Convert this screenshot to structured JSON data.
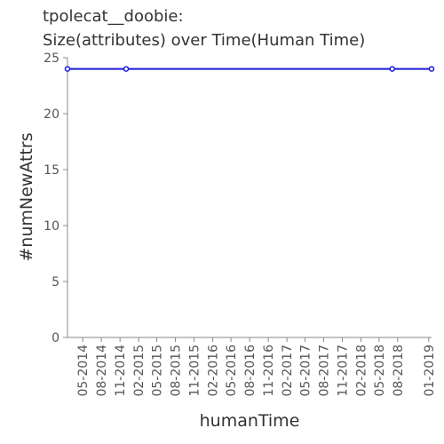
{
  "chart_data": {
    "type": "line",
    "title": [
      "tpolecat__doobie:",
      "Size(attributes) over Time(Human Time)"
    ],
    "xlabel": "humanTime",
    "ylabel": "#numNewAttrs",
    "ylim": [
      0,
      25
    ],
    "yticks": [
      0,
      5,
      10,
      15,
      20,
      25
    ],
    "xticks": [
      "05-2014",
      "08-2014",
      "11-2014",
      "02-2015",
      "05-2015",
      "08-2015",
      "11-2015",
      "02-2016",
      "05-2016",
      "08-2016",
      "11-2016",
      "02-2017",
      "05-2017",
      "08-2017",
      "11-2017",
      "02-2018",
      "05-2018",
      "08-2018",
      "01-2019"
    ],
    "xlim": [
      "2014-02-15",
      "2019-01-15"
    ],
    "series": [
      {
        "color": "#1a1adb",
        "x": [
          "2014-02-15",
          "2014-12-01",
          "2018-07-05",
          "2019-01-15"
        ],
        "y": [
          24,
          24,
          24,
          24
        ]
      }
    ],
    "grid": false
  }
}
